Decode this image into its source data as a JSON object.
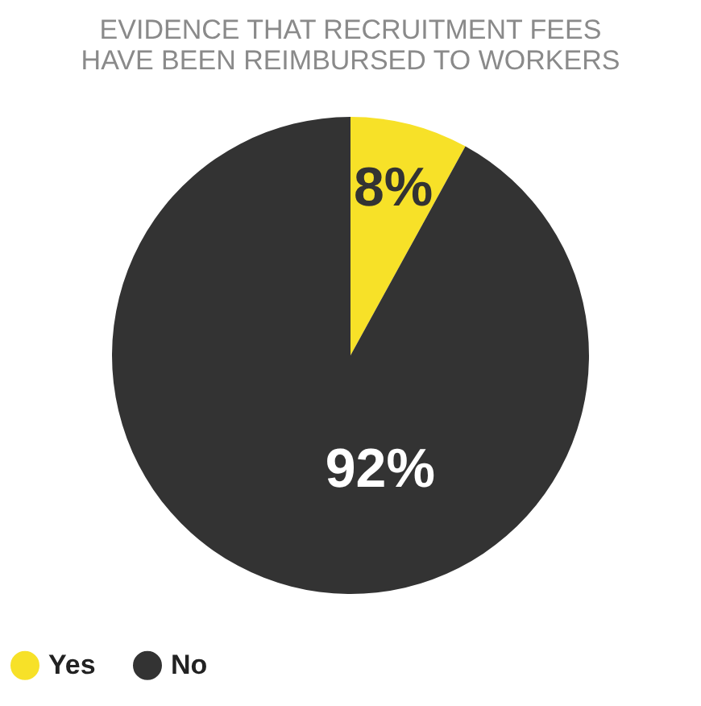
{
  "chart_data": {
    "type": "pie",
    "title": [
      "EVIDENCE THAT RECRUITMENT FEES",
      "HAVE BEEN REIMBURSED TO WORKERS"
    ],
    "categories": [
      "Yes",
      "No"
    ],
    "values": [
      8,
      92
    ],
    "colors": [
      "#f7e128",
      "#333333"
    ],
    "value_labels": [
      "8%",
      "92%"
    ],
    "legend": "bottom"
  }
}
